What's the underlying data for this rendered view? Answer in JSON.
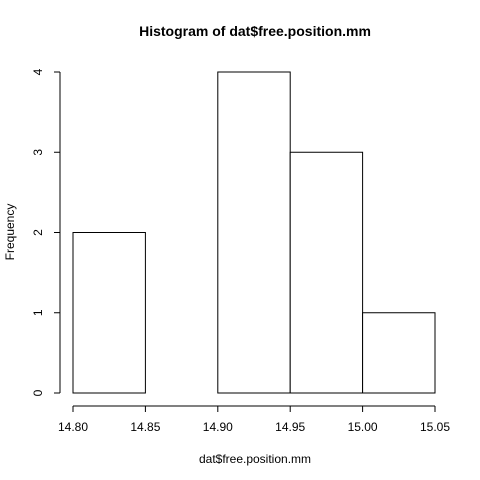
{
  "chart_data": {
    "type": "bar",
    "title": "Histogram of dat$free.position.mm",
    "xlabel": "dat$free.position.mm",
    "ylabel": "Frequency",
    "bins": [
      {
        "start": 14.8,
        "end": 14.85,
        "count": 2
      },
      {
        "start": 14.85,
        "end": 14.9,
        "count": 0
      },
      {
        "start": 14.9,
        "end": 14.95,
        "count": 4
      },
      {
        "start": 14.95,
        "end": 15.0,
        "count": 3
      },
      {
        "start": 15.0,
        "end": 15.05,
        "count": 1
      }
    ],
    "xlim": [
      14.8,
      15.05
    ],
    "ylim": [
      0,
      4
    ],
    "x_ticks": [
      "14.80",
      "14.85",
      "14.90",
      "14.95",
      "15.00",
      "15.05"
    ],
    "y_ticks": [
      "0",
      "1",
      "2",
      "3",
      "4"
    ],
    "grid": false,
    "legend": "none"
  }
}
